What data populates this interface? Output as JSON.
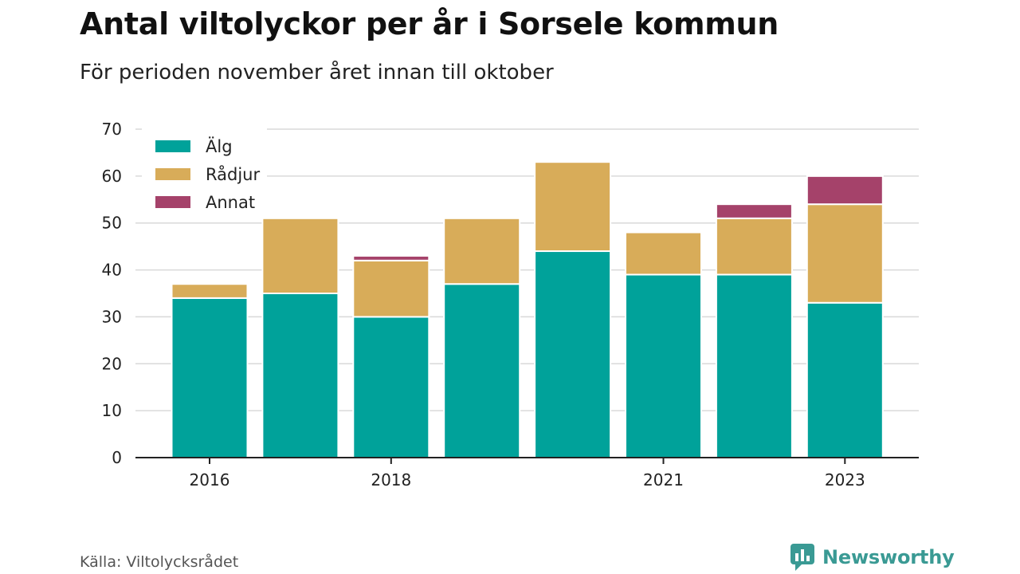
{
  "title": "Antal viltolyckor per år i Sorsele kommun",
  "subtitle": "För perioden november året innan till oktober",
  "source": "Källa: Viltolycksrådet",
  "brand": {
    "name": "Newsworthy",
    "logo_icon": "newsworthy-logo-icon"
  },
  "colors": {
    "alg": "#00a29a",
    "radjur": "#d8ac59",
    "annat": "#a5426a",
    "grid": "#d9d9d9",
    "axis": "#222222"
  },
  "chart_data": {
    "type": "bar",
    "stacked": true,
    "x": [
      2016,
      2017,
      2018,
      2019,
      2020,
      2021,
      2022,
      2023
    ],
    "x_tick_labels": [
      "2016",
      "2018",
      "2021",
      "2023"
    ],
    "x_tick_values": [
      2016,
      2018,
      2021,
      2023
    ],
    "series": [
      {
        "name": "Älg",
        "color": "#00a29a",
        "values": [
          34,
          35,
          30,
          37,
          44,
          39,
          39,
          33
        ]
      },
      {
        "name": "Rådjur",
        "color": "#d8ac59",
        "values": [
          3,
          16,
          12,
          14,
          19,
          9,
          12,
          21
        ]
      },
      {
        "name": "Annat",
        "color": "#a5426a",
        "values": [
          0,
          0,
          1,
          0,
          0,
          0,
          3,
          6
        ]
      }
    ],
    "ylim": [
      0,
      70
    ],
    "y_ticks": [
      0,
      10,
      20,
      30,
      40,
      50,
      60,
      70
    ],
    "grid": true,
    "legend_position": "top-left"
  }
}
